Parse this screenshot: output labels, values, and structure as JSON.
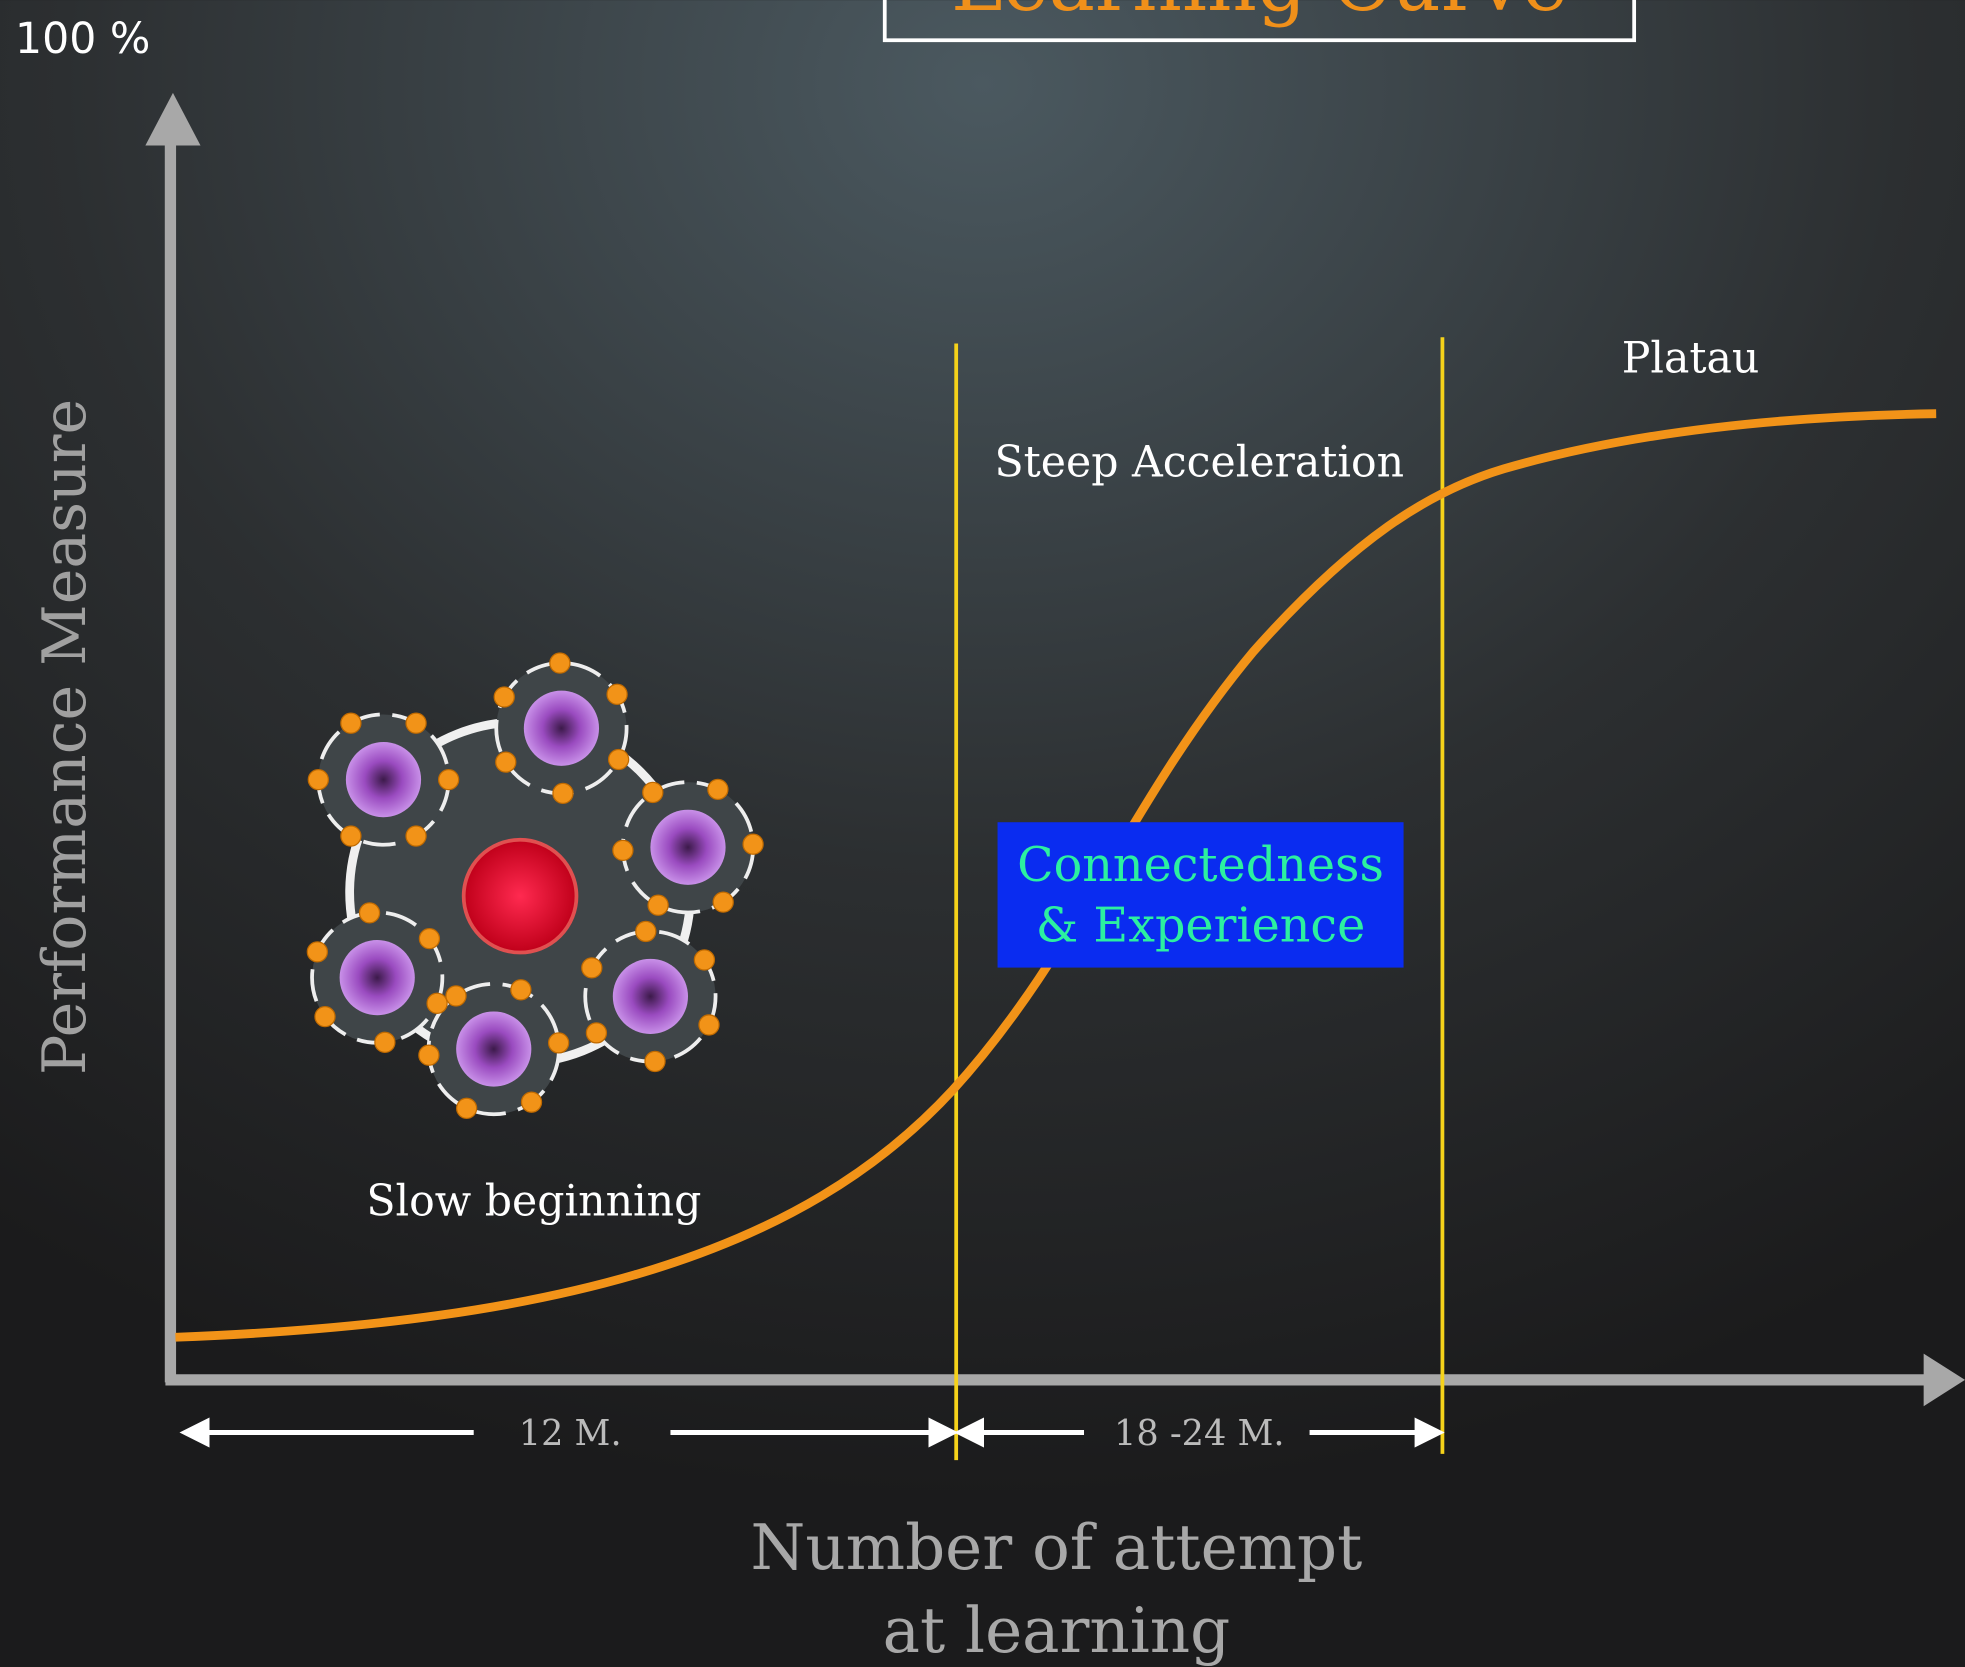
{
  "title": "Learning Curve",
  "y_axis": {
    "top_label": "100 %",
    "label": "Performance Measure"
  },
  "x_axis": {
    "label_lines": [
      "Number of attempt",
      "at learning"
    ]
  },
  "phases": [
    {
      "label": "Slow beginning"
    },
    {
      "label": "Steep Acceleration"
    },
    {
      "label": "Platau"
    }
  ],
  "durations": [
    "12 M.",
    "18 -24 M."
  ],
  "callout": {
    "lines": [
      "Connectedness",
      "& Experience"
    ]
  }
}
